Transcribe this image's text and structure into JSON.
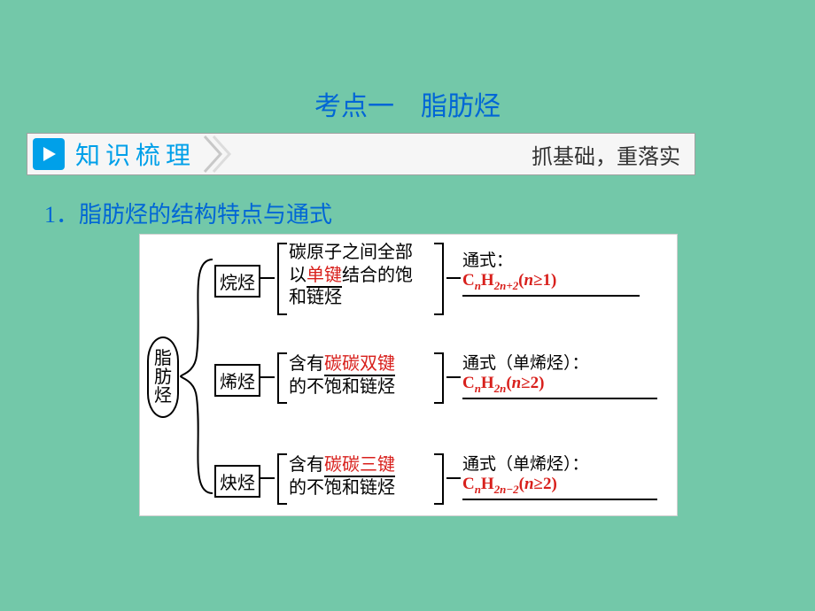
{
  "page": {
    "background_color": "#73c8a9",
    "content_bg": "#ffffff"
  },
  "title": {
    "text": "考点一　脂肪烃",
    "color": "#0066d6",
    "fontsize": 30
  },
  "banner": {
    "label": "知识梳理",
    "label_color": "#00a0e9",
    "label_fontsize": 28,
    "right_text": "抓基础，重落实",
    "right_color": "#333333",
    "right_fontsize": 24,
    "play_bg": "#00a0e9",
    "chevron_color": "#c0c0c0"
  },
  "section": {
    "number": "1．",
    "text": "脂肪烃的结构特点与通式",
    "text_color": "#0066d6",
    "fontsize": 26
  },
  "diagram": {
    "bg": "#ffffff",
    "border_color": "#cfcfcf",
    "text_color": "#000000",
    "highlight_color": "#d8201c",
    "formula_color": "#d8201c",
    "node_fontsize": 20,
    "desc_fontsize": 20,
    "formula_fontsize": 19,
    "root": {
      "label_chars": [
        "脂",
        "肪",
        "烃"
      ]
    },
    "branches": [
      {
        "id": "alkane",
        "category": "烷烃",
        "desc_pre": "碳原子之间全部\n以",
        "desc_hl": "单键",
        "desc_post": "结合的饱\n和链烃",
        "formula_label": "通式：",
        "formula_html": "C<sub>n</sub>H<sub>2n+2</sub>(<span class='f'>n</span>≥1)"
      },
      {
        "id": "alkene",
        "category": "烯烃",
        "desc_pre": "含有",
        "desc_hl": "碳碳双键",
        "desc_post": "\n的不饱和链烃",
        "formula_label": "通式（单烯烃）：",
        "formula_html": "C<sub>n</sub>H<sub>2n</sub>(<span class='f'>n</span>≥2)"
      },
      {
        "id": "alkyne",
        "category": "炔烃",
        "desc_pre": "含有",
        "desc_hl": "碳碳三键",
        "desc_post": "\n的不饱和链烃",
        "formula_label": "通式（单烯烃）：",
        "formula_html": "C<sub>n</sub>H<sub>2n−2</sub>(<span class='f'>n</span>≥2)"
      }
    ]
  }
}
